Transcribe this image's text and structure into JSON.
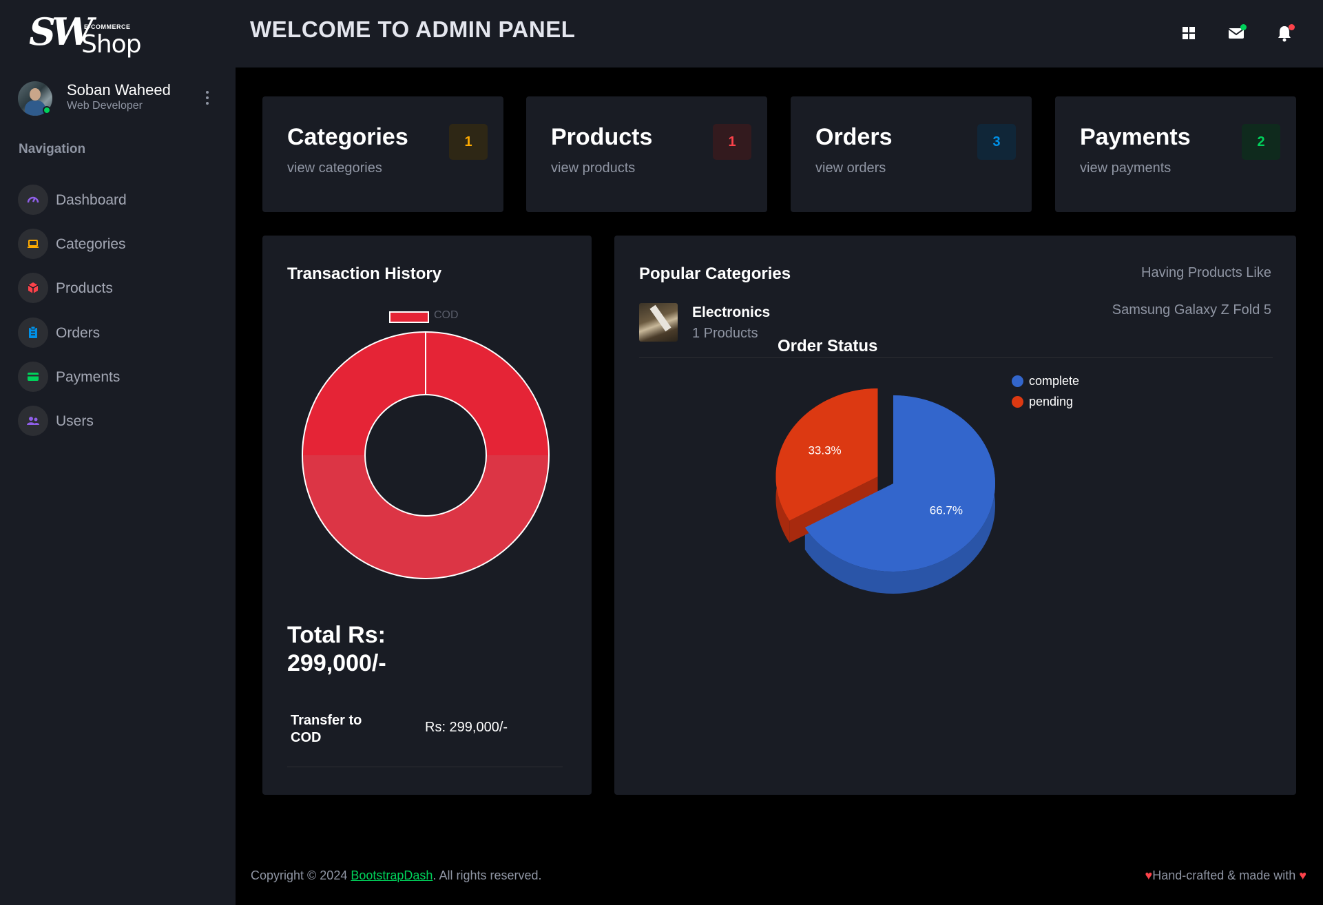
{
  "brand": {
    "logo_mark": "SW",
    "logo_tag": "E-COMMERCE",
    "logo_word": "Shop"
  },
  "header": {
    "title": "WELCOME TO ADMIN PANEL",
    "icons": [
      "grid-icon",
      "mail-icon",
      "bell-icon"
    ]
  },
  "profile": {
    "name": "Soban Waheed",
    "role": "Web Developer",
    "status": "online"
  },
  "navigation": {
    "heading": "Navigation",
    "items": [
      {
        "label": "Dashboard",
        "icon": "speedometer-icon",
        "color": "#8f5fe8"
      },
      {
        "label": "Categories",
        "icon": "laptop-icon",
        "color": "#ffab00"
      },
      {
        "label": "Products",
        "icon": "cube-icon",
        "color": "#fc424a"
      },
      {
        "label": "Orders",
        "icon": "clipboard-icon",
        "color": "#0090e7"
      },
      {
        "label": "Payments",
        "icon": "card-icon",
        "color": "#00d25b"
      },
      {
        "label": "Users",
        "icon": "users-icon",
        "color": "#8f5fe8"
      }
    ]
  },
  "stats": [
    {
      "title": "Categories",
      "link": "view categories",
      "count": "1",
      "badge_color": "#ffab00",
      "badge_bg": "#2e2715"
    },
    {
      "title": "Products",
      "link": "view products",
      "count": "1",
      "badge_color": "#fc424a",
      "badge_bg": "#331a1e"
    },
    {
      "title": "Orders",
      "link": "view orders",
      "count": "3",
      "badge_color": "#0090e7",
      "badge_bg": "#102638"
    },
    {
      "title": "Payments",
      "link": "view payments",
      "count": "2",
      "badge_color": "#00d25b",
      "badge_bg": "#0f2a1d"
    }
  ],
  "transactions": {
    "title": "Transaction History",
    "legend": "COD",
    "total_label": "Total Rs:",
    "total_value": "299,000/-",
    "rows": [
      {
        "label": "Transfer to COD",
        "value": "Rs: 299,000/-"
      }
    ]
  },
  "popular": {
    "title": "Popular Categories",
    "having_label": "Having Products Like",
    "items": [
      {
        "name": "Electronics",
        "count": "1 Products",
        "product": "Samsung Galaxy Z Fold 5"
      }
    ]
  },
  "chart_data": [
    {
      "type": "pie",
      "title": "",
      "categories": [
        "COD"
      ],
      "values": [
        299000
      ],
      "colors": [
        "#e52436"
      ],
      "legend": "top"
    },
    {
      "type": "pie",
      "title": "Order Status",
      "categories": [
        "complete",
        "pending"
      ],
      "values": [
        2,
        1
      ],
      "data_labels": [
        "66.7%",
        "33.3%"
      ],
      "colors": [
        "#3366cc",
        "#dc3912"
      ],
      "legend": "top-right"
    }
  ],
  "footer": {
    "copyright_prefix": "Copyright © 2024 ",
    "link": "BootstrapDash",
    "copyright_suffix": ". All rights reserved.",
    "crafted_text": "Hand-crafted & made with "
  }
}
